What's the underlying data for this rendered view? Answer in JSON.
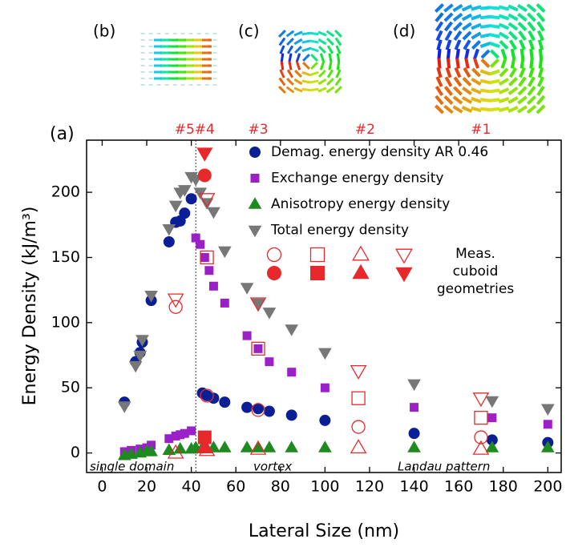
{
  "chart_data": {
    "type": "scatter",
    "panel_labels": [
      "(a)",
      "(b)",
      "(c)",
      "(d)"
    ],
    "xlabel": "Lateral Size (nm)",
    "ylabel": "Energy Density (kJ/m³)",
    "xlim": [
      -7,
      206
    ],
    "xticks": [
      0,
      20,
      40,
      60,
      80,
      100,
      120,
      140,
      160,
      180,
      200
    ],
    "ylim": [
      -15,
      240
    ],
    "yticks": [
      0,
      50,
      100,
      150,
      200
    ],
    "divider_x": 42,
    "top_labels": [
      {
        "text": "#5",
        "x": 37
      },
      {
        "text": "#4",
        "x": 46
      },
      {
        "text": "#3",
        "x": 70
      },
      {
        "text": "#2",
        "x": 118
      },
      {
        "text": "#1",
        "x": 170
      }
    ],
    "top_label_color": "#e8292b",
    "region_labels": [
      "single domain",
      "vortex",
      "Landau pattern"
    ],
    "series": [
      {
        "name": "Demag. energy density AR 0.46",
        "color": "#0a1e96",
        "marker": "circle",
        "x": [
          10,
          15,
          17,
          18,
          22,
          30,
          33,
          35,
          37,
          40,
          45,
          47,
          50,
          55,
          65,
          70,
          75,
          85,
          100,
          140,
          175,
          200
        ],
        "values": [
          39,
          70,
          77,
          85,
          117,
          162,
          177,
          178,
          184,
          195,
          46,
          44,
          42,
          39,
          35,
          34,
          32,
          29,
          25,
          15,
          10,
          8
        ]
      },
      {
        "name": "Exchange energy density",
        "color": "#9b20c8",
        "marker": "square",
        "x": [
          10,
          13,
          17,
          20,
          22,
          30,
          33,
          35,
          37,
          40,
          42,
          44,
          46,
          48,
          50,
          55,
          65,
          70,
          75,
          85,
          100,
          140,
          175,
          200
        ],
        "values": [
          1,
          2,
          3,
          4,
          6,
          11,
          13,
          14,
          15,
          17,
          165,
          160,
          150,
          140,
          128,
          115,
          90,
          80,
          70,
          62,
          50,
          35,
          27,
          22
        ]
      },
      {
        "name": "Anisotropy energy density",
        "color": "#1f8a1f",
        "marker": "triangle",
        "x": [
          10,
          13,
          17,
          20,
          22,
          30,
          35,
          40,
          42,
          45,
          50,
          55,
          65,
          70,
          75,
          85,
          100,
          140,
          175,
          200
        ],
        "values": [
          -2,
          -1,
          0,
          1,
          1,
          2,
          3,
          3,
          4,
          4,
          4,
          4,
          4,
          4,
          4,
          4,
          4,
          4,
          4,
          4
        ]
      },
      {
        "name": "Total energy density",
        "color": "#777777",
        "marker": "triangle-down",
        "x": [
          10,
          15,
          17,
          18,
          22,
          30,
          33,
          35,
          37,
          40,
          42,
          44,
          47,
          50,
          55,
          65,
          70,
          75,
          85,
          100,
          140,
          175,
          200
        ],
        "values": [
          36,
          67,
          75,
          87,
          121,
          172,
          190,
          200,
          202,
          212,
          210,
          200,
          192,
          185,
          155,
          127,
          115,
          108,
          95,
          77,
          53,
          40,
          34
        ]
      }
    ],
    "measured": {
      "name": "Meas. cuboid geometries",
      "color": "#e8292b",
      "series": [
        {
          "marker": "circle",
          "x": [
            33,
            47,
            70,
            115,
            170
          ],
          "values": [
            112,
            44,
            33,
            20,
            12
          ]
        },
        {
          "marker": "square",
          "x": [
            47,
            70,
            115,
            170
          ],
          "values": [
            150,
            80,
            42,
            27
          ]
        },
        {
          "marker": "triangle",
          "x": [
            33,
            47,
            70,
            115,
            170
          ],
          "values": [
            0,
            2,
            3,
            4,
            3
          ]
        },
        {
          "marker": "triangle-down",
          "x": [
            33,
            47,
            70,
            115,
            170
          ],
          "values": [
            118,
            195,
            115,
            63,
            42
          ]
        }
      ],
      "filled": {
        "x": [
          46,
          46,
          46,
          46
        ],
        "markers": [
          "circle",
          "square",
          "triangle",
          "triangle-down"
        ],
        "values": [
          213,
          12,
          4,
          230
        ]
      }
    }
  }
}
